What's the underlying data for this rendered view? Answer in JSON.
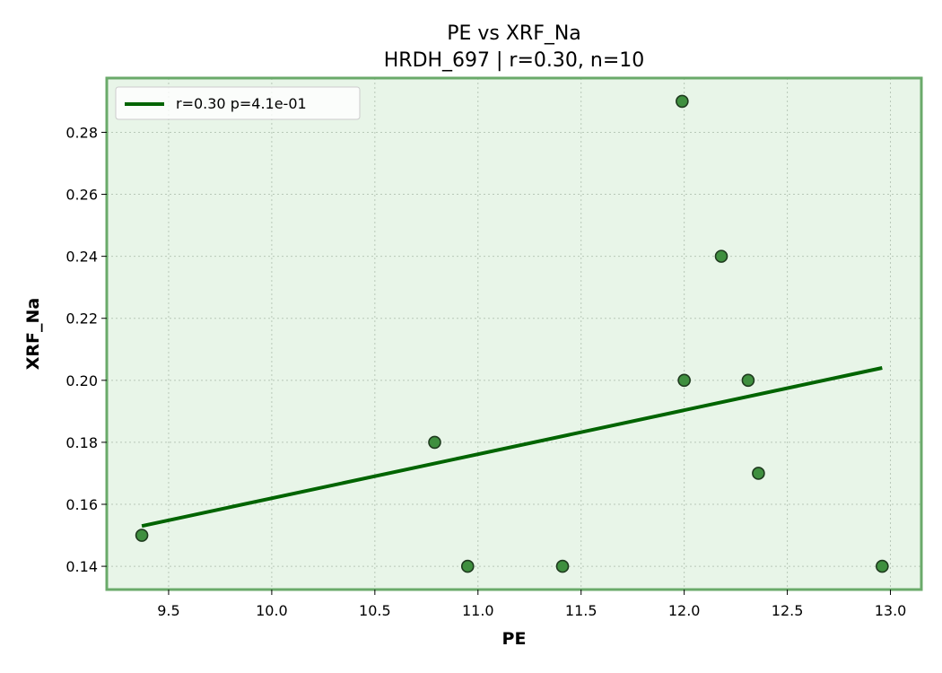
{
  "chart_data": {
    "type": "scatter",
    "title": "PE vs XRF_Na",
    "subtitle": "HRDH_697 | r=0.30, n=10",
    "xlabel": "PE",
    "ylabel": "XRF_Na",
    "xlim": [
      9.2,
      13.15
    ],
    "ylim": [
      0.1325,
      0.2975
    ],
    "xticks": [
      9.5,
      10.0,
      10.5,
      11.0,
      11.5,
      12.0,
      12.5,
      13.0
    ],
    "xtick_labels": [
      "9.5",
      "10.0",
      "10.5",
      "11.0",
      "11.5",
      "12.0",
      "12.5",
      "13.0"
    ],
    "yticks": [
      0.14,
      0.16,
      0.18,
      0.2,
      0.22,
      0.24,
      0.26,
      0.28
    ],
    "ytick_labels": [
      "0.14",
      "0.16",
      "0.18",
      "0.20",
      "0.22",
      "0.24",
      "0.26",
      "0.28"
    ],
    "grid": true,
    "legend_position": "top-left",
    "points": [
      {
        "x": 9.37,
        "y": 0.15
      },
      {
        "x": 10.79,
        "y": 0.18
      },
      {
        "x": 10.95,
        "y": 0.14
      },
      {
        "x": 11.41,
        "y": 0.14
      },
      {
        "x": 11.99,
        "y": 0.29
      },
      {
        "x": 12.0,
        "y": 0.2
      },
      {
        "x": 12.18,
        "y": 0.24
      },
      {
        "x": 12.31,
        "y": 0.2
      },
      {
        "x": 12.36,
        "y": 0.17
      },
      {
        "x": 12.96,
        "y": 0.14
      }
    ],
    "fit_line": {
      "label": "r=0.30  p=4.1e-01",
      "x": [
        9.37,
        12.96
      ],
      "y": [
        0.153,
        0.204
      ]
    },
    "colors": {
      "background": "#e8f5e8",
      "frame": "#6aaa6a",
      "grid": "#b8c8b8",
      "line": "#006400",
      "marker_fill": "#3f8f3f",
      "marker_edge": "#1e3a1e"
    }
  }
}
